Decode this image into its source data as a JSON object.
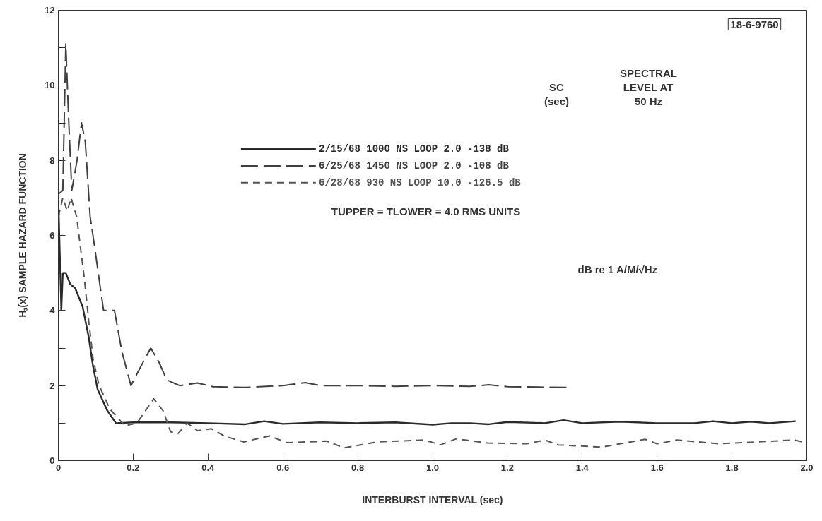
{
  "chart_data": {
    "type": "line",
    "xlabel": "INTERBURST INTERVAL (sec)",
    "ylabel": "Hₛ(x) SAMPLE HAZARD FUNCTION",
    "xlim": [
      0,
      2.0
    ],
    "ylim": [
      0,
      12
    ],
    "xticks": [
      0,
      {
        "value": 0.2,
        "label": "0.2"
      },
      {
        "value": 0.4,
        "label": "0.4"
      },
      {
        "value": 0.6,
        "label": "0.6"
      },
      {
        "value": 0.8,
        "label": "0.8"
      },
      {
        "value": 1.0,
        "label": "1.0"
      },
      {
        "value": 1.2,
        "label": "1.2"
      },
      {
        "value": 1.4,
        "label": "1.4"
      },
      {
        "value": 1.6,
        "label": "1.6"
      },
      {
        "value": 1.8,
        "label": "1.8"
      },
      {
        "value": 2.0,
        "label": "2.0"
      }
    ],
    "yticks": [
      0,
      {
        "value": 1,
        "label": null
      },
      2,
      {
        "value": 3,
        "label": null
      },
      4,
      {
        "value": 5,
        "label": null
      },
      6,
      {
        "value": 7,
        "label": null
      },
      8,
      {
        "value": 9,
        "label": null
      },
      10,
      {
        "value": 11,
        "label": null
      },
      12
    ],
    "grid": false,
    "legend": "top right",
    "marker": "none",
    "series": [
      {
        "name": "2/15/68 1000 NS LOOP 2.0 -138 dB",
        "color": "#2a2a2a",
        "line_style": "solid",
        "x": [
          0,
          0.004,
          0.008,
          0.012,
          0.02,
          0.032,
          0.045,
          0.065,
          0.081,
          0.093,
          0.105,
          0.13,
          0.154,
          0.2,
          0.3,
          0.4,
          0.5,
          0.55,
          0.6,
          0.7,
          0.8,
          0.9,
          1.0,
          1.05,
          1.1,
          1.15,
          1.2,
          1.3,
          1.35,
          1.4,
          1.5,
          1.6,
          1.7,
          1.75,
          1.8,
          1.85,
          1.9,
          1.97
        ],
        "values": [
          7.0,
          5.5,
          4.0,
          5.0,
          5.0,
          4.7,
          4.6,
          4.1,
          3.3,
          2.5,
          1.9,
          1.35,
          1.0,
          1.02,
          1.02,
          1.0,
          0.97,
          1.05,
          0.98,
          1.02,
          1.0,
          1.02,
          0.96,
          1.0,
          1.0,
          0.97,
          1.03,
          1.0,
          1.08,
          1.0,
          1.04,
          1.0,
          1.0,
          1.05,
          1.0,
          1.04,
          1.0,
          1.05
        ]
      },
      {
        "name": "6/25/68 1450 NS LOOP 2.0 -108 dB",
        "color": "#404040",
        "line_style": "dashed",
        "x": [
          0,
          0.012,
          0.02,
          0.028,
          0.036,
          0.05,
          0.062,
          0.072,
          0.085,
          0.097,
          0.113,
          0.121,
          0.15,
          0.17,
          0.194,
          0.22,
          0.247,
          0.27,
          0.29,
          0.324,
          0.372,
          0.413,
          0.5,
          0.6,
          0.66,
          0.7,
          0.8,
          0.9,
          1.0,
          1.1,
          1.15,
          1.2,
          1.36
        ],
        "values": [
          7.1,
          7.2,
          11.1,
          9.0,
          7.2,
          8.0,
          9.0,
          8.5,
          6.5,
          5.7,
          4.55,
          4.0,
          4.0,
          2.9,
          2.0,
          2.5,
          3.0,
          2.6,
          2.15,
          2.0,
          2.07,
          1.97,
          1.95,
          2.0,
          2.08,
          2.0,
          2.0,
          1.98,
          2.0,
          1.98,
          2.02,
          1.97,
          1.95
        ]
      },
      {
        "name": "6/28/68 930 NS LOOP 10.0 -126.5 dB",
        "color": "#555555",
        "line_style": "dashed",
        "x": [
          0,
          0.012,
          0.024,
          0.034,
          0.049,
          0.057,
          0.069,
          0.081,
          0.093,
          0.109,
          0.138,
          0.178,
          0.21,
          0.255,
          0.28,
          0.3,
          0.32,
          0.344,
          0.372,
          0.409,
          0.445,
          0.496,
          0.564,
          0.611,
          0.717,
          0.764,
          0.853,
          0.979,
          1.021,
          1.063,
          1.147,
          1.252,
          1.3,
          1.336,
          1.452,
          1.568,
          1.6,
          1.652,
          1.767,
          1.83,
          1.967,
          2.0
        ],
        "values": [
          6.5,
          7.0,
          6.65,
          7.0,
          6.5,
          5.85,
          4.9,
          3.75,
          2.7,
          2.0,
          1.37,
          0.93,
          1.0,
          1.65,
          1.33,
          0.77,
          0.72,
          1.0,
          0.8,
          0.85,
          0.65,
          0.5,
          0.66,
          0.48,
          0.52,
          0.34,
          0.5,
          0.55,
          0.42,
          0.58,
          0.47,
          0.45,
          0.55,
          0.42,
          0.36,
          0.57,
          0.45,
          0.55,
          0.45,
          0.48,
          0.55,
          0.47
        ]
      }
    ],
    "annotations": [
      "SC\n(sec)",
      "SPECTRAL\nLEVEL AT\n50 Hz",
      "TUPPER = TLOWER = 4.0 RMS UNITS",
      "dB re 1 A/M/√Hz",
      "18-6-9760"
    ]
  }
}
